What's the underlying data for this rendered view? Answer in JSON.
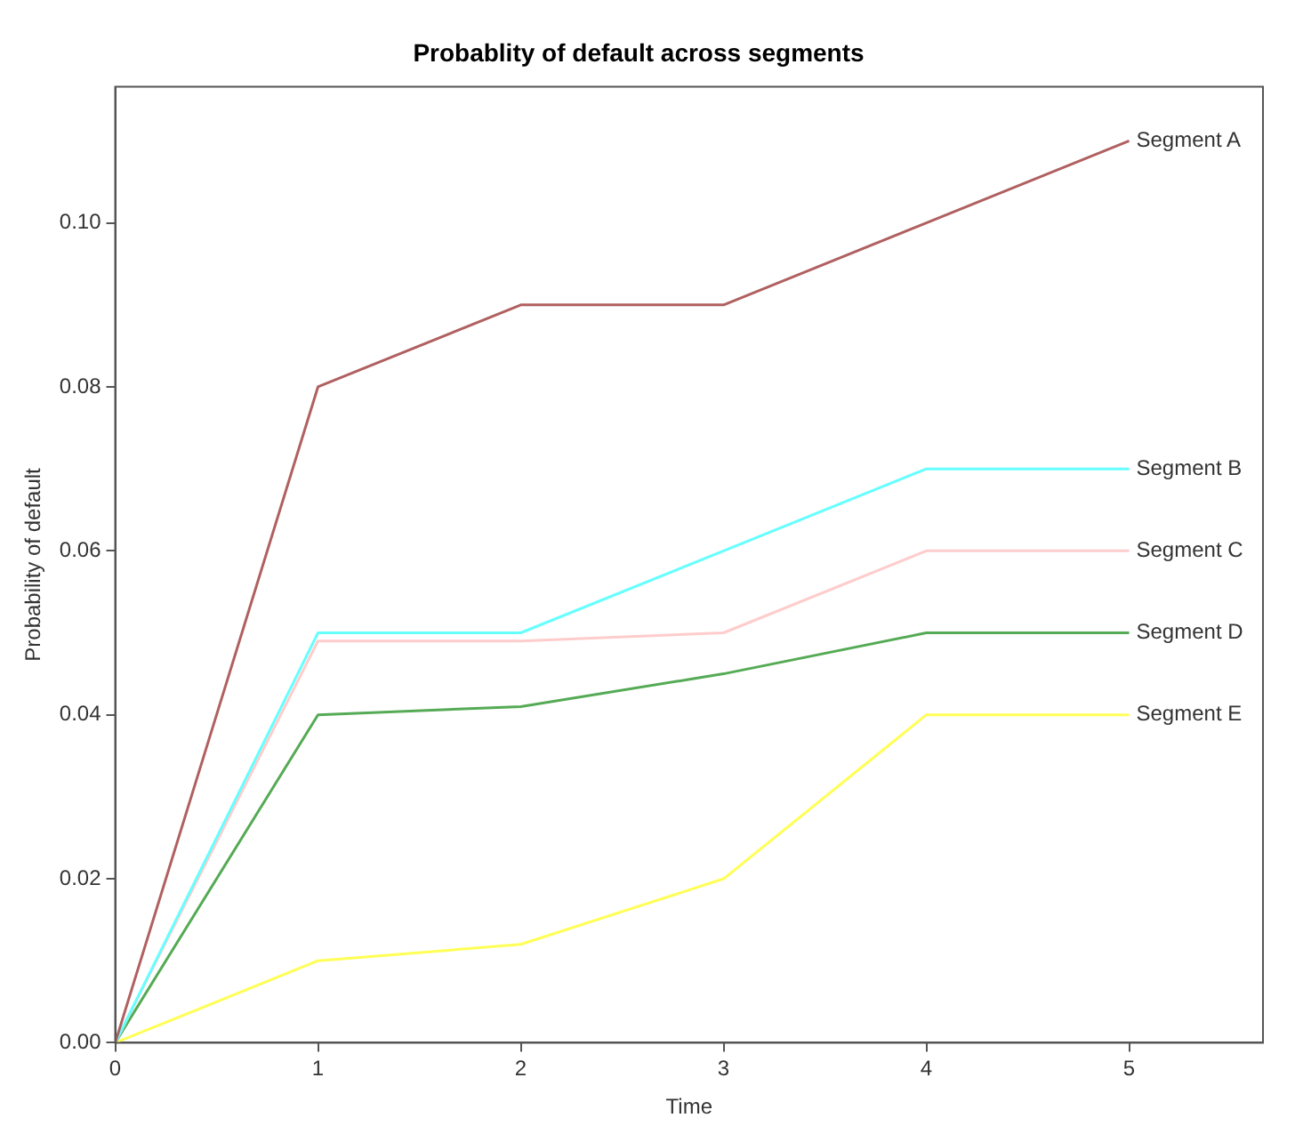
{
  "chart_data": {
    "type": "line",
    "title": "Probablity of default across segments",
    "xlabel": "Time",
    "ylabel": "Probability of default",
    "x": [
      0,
      1,
      2,
      3,
      4,
      5
    ],
    "series": [
      {
        "name": "Segment A",
        "color": "#b06060",
        "values": [
          0,
          0.08,
          0.09,
          0.09,
          0.1,
          0.11
        ]
      },
      {
        "name": "Segment B",
        "color": "#66ffff",
        "values": [
          0,
          0.05,
          0.05,
          0.06,
          0.07,
          0.07
        ]
      },
      {
        "name": "Segment C",
        "color": "#ffcccc",
        "values": [
          0,
          0.049,
          0.049,
          0.05,
          0.06,
          0.06
        ]
      },
      {
        "name": "Segment D",
        "color": "#55aa55",
        "values": [
          0,
          0.04,
          0.041,
          0.045,
          0.05,
          0.05
        ]
      },
      {
        "name": "Segment E",
        "color": "#ffff55",
        "values": [
          0,
          0.01,
          0.012,
          0.02,
          0.04,
          0.04
        ]
      }
    ],
    "xlim": [
      0,
      5.66
    ],
    "ylim": [
      0,
      0.1166
    ],
    "xticks": [
      0,
      1,
      2,
      3,
      4,
      5
    ],
    "yticks": [
      {
        "value": 0,
        "label": "0.00"
      },
      {
        "value": 0.02,
        "label": "0.02"
      },
      {
        "value": 0.04,
        "label": "0.04"
      },
      {
        "value": 0.06,
        "label": "0.06"
      },
      {
        "value": 0.08,
        "label": "0.08"
      },
      {
        "value": 0.1,
        "label": "0.10"
      }
    ],
    "grid": false,
    "legend": false,
    "marker": "none",
    "line_style": "solid"
  }
}
